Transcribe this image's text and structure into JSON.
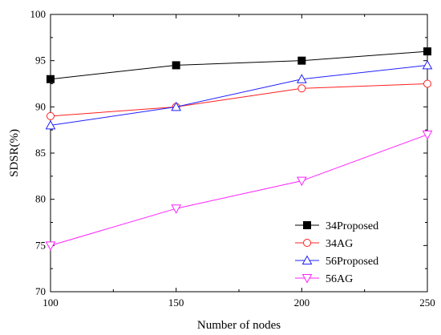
{
  "chart_data": {
    "type": "line",
    "x": [
      100,
      150,
      200,
      250
    ],
    "xlabel": "Number of nodes",
    "ylabel": "SDSR(%)",
    "xlim": [
      100,
      250
    ],
    "ylim": [
      70,
      100
    ],
    "xticks": [
      100,
      150,
      200,
      250
    ],
    "yticks": [
      70,
      75,
      80,
      85,
      90,
      95,
      100
    ],
    "grid": false,
    "legend_position": "bottom-right",
    "series": [
      {
        "name": "34Proposed",
        "values": [
          93,
          94.5,
          95,
          96
        ],
        "color": "#000000",
        "marker": "filled-square"
      },
      {
        "name": "34AG",
        "values": [
          89,
          90,
          92,
          92.5
        ],
        "color": "#ff2020",
        "marker": "open-circle"
      },
      {
        "name": "56Proposed",
        "values": [
          88,
          90,
          93,
          94.5
        ],
        "color": "#2020ff",
        "marker": "open-triangle-up"
      },
      {
        "name": "56AG",
        "values": [
          75,
          79,
          82,
          87
        ],
        "color": "#ff20ff",
        "marker": "open-triangle-down"
      }
    ]
  }
}
